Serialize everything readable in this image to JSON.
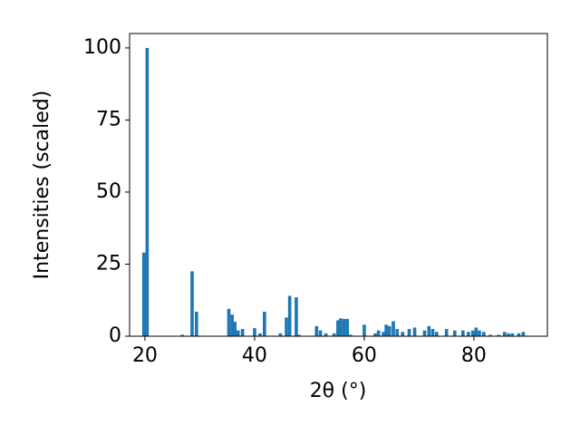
{
  "chart_data": {
    "type": "bar",
    "xlabel": "2θ (°)",
    "ylabel": "Intensities (scaled)",
    "x": [
      19.8,
      20.4,
      26.8,
      28.6,
      29.4,
      35.3,
      35.9,
      36.4,
      37.0,
      37.8,
      40.0,
      41.0,
      41.8,
      44.7,
      45.8,
      46.4,
      47.6,
      48.1,
      51.3,
      52.0,
      53.0,
      54.5,
      55.2,
      55.7,
      56.3,
      56.9,
      57.5,
      60.0,
      62.0,
      62.6,
      63.5,
      64.0,
      64.6,
      65.3,
      66.0,
      67.0,
      68.2,
      69.2,
      71.0,
      71.8,
      72.5,
      73.2,
      75.0,
      76.5,
      78.0,
      79.0,
      79.8,
      80.4,
      81.0,
      81.8,
      83.0,
      84.5,
      85.6,
      86.3,
      87.0,
      88.2,
      89.0
    ],
    "values": [
      29,
      100,
      0.5,
      22.5,
      8.5,
      9.5,
      7.5,
      5,
      2,
      2.5,
      2.8,
      1,
      8.5,
      1,
      6.5,
      14,
      13.5,
      0.5,
      3.5,
      2,
      1,
      1,
      5.5,
      6.2,
      6,
      6,
      0.5,
      4,
      1,
      2,
      1.5,
      4,
      3.5,
      5.2,
      2.5,
      1.5,
      2.5,
      3,
      2,
      3.5,
      2.5,
      1.5,
      2.5,
      2,
      2,
      1.5,
      2,
      3,
      2,
      1.5,
      0.5,
      0.5,
      1.5,
      1,
      1,
      1,
      1.5
    ],
    "color": "#1f77b4",
    "xlim": [
      17.2,
      93.4
    ],
    "ylim": [
      0,
      105
    ],
    "xticks": [
      20,
      40,
      60,
      80
    ],
    "yticks": [
      0,
      25,
      50,
      75,
      100
    ]
  }
}
